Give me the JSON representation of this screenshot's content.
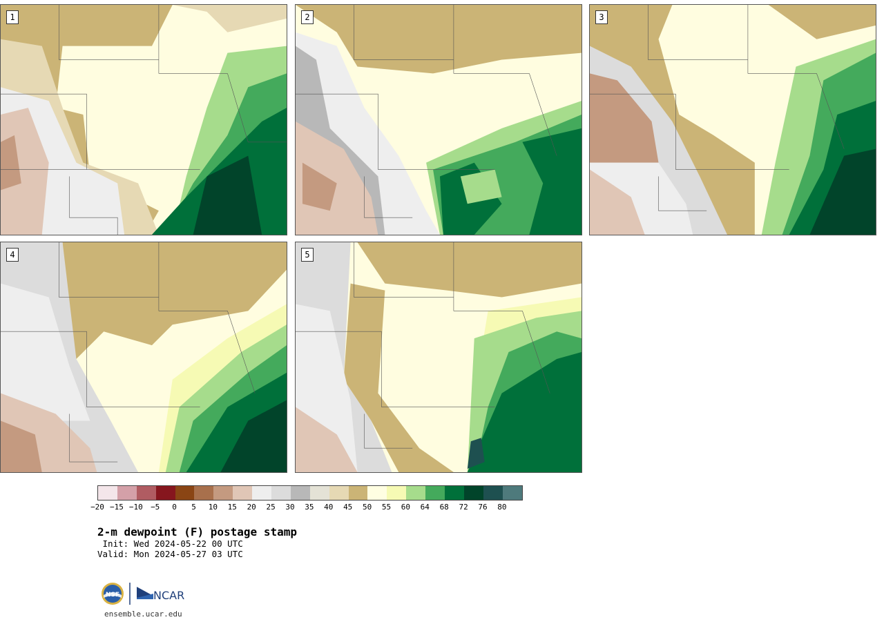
{
  "panels": [
    {
      "label": "1",
      "variant": 1
    },
    {
      "label": "2",
      "variant": 2
    },
    {
      "label": "3",
      "variant": 3
    },
    {
      "label": "4",
      "variant": 4
    },
    {
      "label": "5",
      "variant": 5
    }
  ],
  "colorbar": {
    "colors": [
      "#f4e6ea",
      "#d4a0a8",
      "#b05c62",
      "#86161e",
      "#8a4514",
      "#a8704c",
      "#c49a80",
      "#e0c6b6",
      "#eeeeee",
      "#dcdcdc",
      "#b8b8b8",
      "#e4e2d6",
      "#e6d9b4",
      "#cbb476",
      "#fffee2",
      "#f6fab4",
      "#a6dc8c",
      "#44aa5c",
      "#00703a",
      "#01442a",
      "#1e5050",
      "#4e7a7c"
    ],
    "ticks": [
      "−20",
      "−15",
      "−10",
      "−5",
      "0",
      "5",
      "10",
      "15",
      "20",
      "25",
      "30",
      "35",
      "40",
      "45",
      "50",
      "55",
      "60",
      "64",
      "68",
      "72",
      "76",
      "80"
    ]
  },
  "title": "2-m dewpoint (F) postage stamp",
  "init": " Init: Wed 2024-05-22 00 UTC",
  "valid": "Valid: Mon 2024-05-27 03 UTC",
  "logos": {
    "nsf": "NSF",
    "ncar": "NCAR"
  },
  "url": "ensemble.ucar.edu"
}
